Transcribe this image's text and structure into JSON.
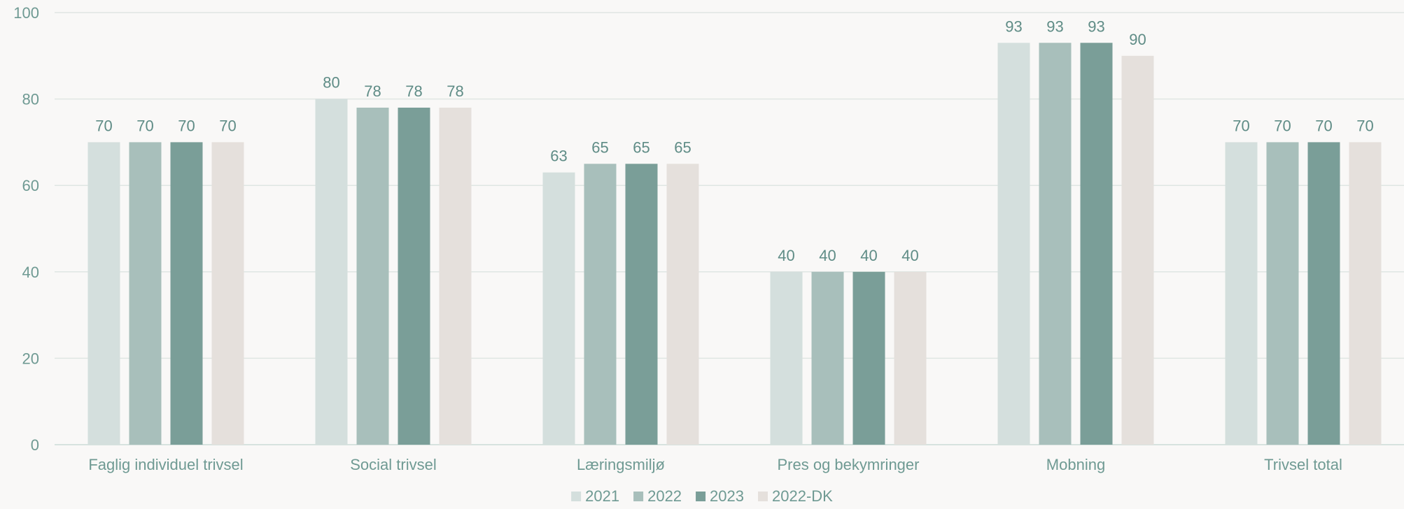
{
  "chart_data": {
    "type": "bar",
    "title": "",
    "xlabel": "",
    "ylabel": "",
    "ylim": [
      0,
      100
    ],
    "yticks": [
      0,
      20,
      40,
      60,
      80,
      100
    ],
    "grid": true,
    "legend_position": "bottom",
    "categories": [
      "Faglig individuel trivsel",
      "Social trivsel",
      "Læringsmiljø",
      "Pres og bekymringer",
      "Mobning",
      "Trivsel total"
    ],
    "series": [
      {
        "name": "2021",
        "color": "#d4dfdd",
        "values": [
          70,
          80,
          63,
          40,
          93,
          70
        ],
        "labels": [
          "70",
          "80",
          "63",
          "40",
          "93",
          "70"
        ]
      },
      {
        "name": "2022",
        "color": "#a8bfbb",
        "values": [
          70,
          78,
          65,
          40,
          93,
          70
        ],
        "labels": [
          "70",
          "78",
          "65",
          "40",
          "93",
          "70"
        ]
      },
      {
        "name": "2023",
        "color": "#7a9e98",
        "values": [
          70,
          78,
          65,
          40,
          93,
          70
        ],
        "labels": [
          "70",
          "78",
          "65",
          "40",
          "93",
          "70"
        ]
      },
      {
        "name": "2022-DK",
        "color": "#e5e0dc",
        "values": [
          70,
          78,
          65,
          40,
          90,
          70
        ],
        "labels": [
          "70",
          "78",
          "65",
          "40",
          "90",
          "70"
        ]
      }
    ],
    "axis_color": "#d7e2df",
    "grid_color": "#dfe6e3"
  }
}
